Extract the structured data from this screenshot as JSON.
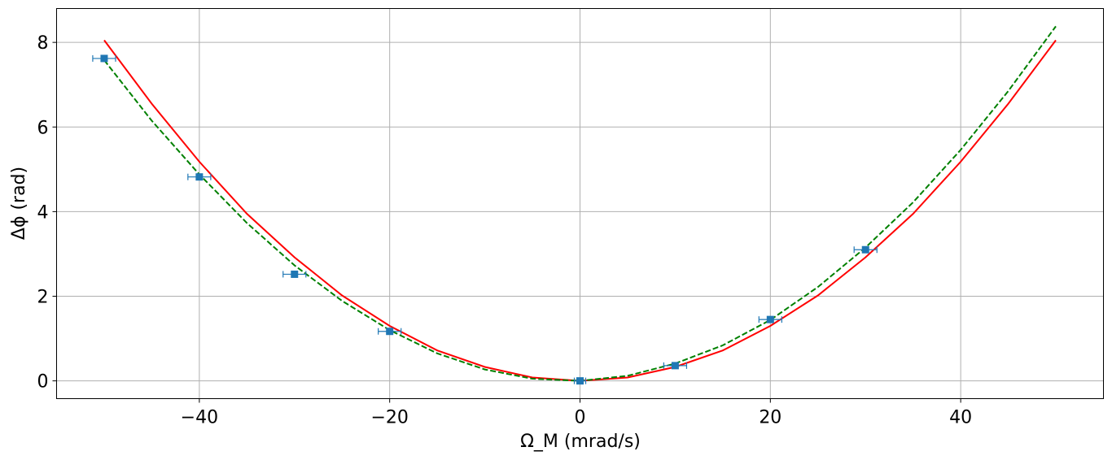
{
  "chart_data": {
    "type": "scatter",
    "xlabel": "Ω_M (mrad/s)",
    "ylabel": "Δϕ (rad)",
    "xlim": [
      -55,
      55
    ],
    "ylim": [
      -0.42,
      8.8
    ],
    "xticks": [
      -40,
      -20,
      0,
      20,
      40
    ],
    "yticks": [
      0,
      2,
      4,
      6,
      8
    ],
    "grid": true,
    "series": [
      {
        "kind": "line",
        "style": "solid",
        "color": "#ff0000",
        "x": [
          -50,
          -45,
          -40,
          -35,
          -30,
          -25,
          -20,
          -15,
          -10,
          -5,
          0,
          5,
          10,
          15,
          20,
          25,
          30,
          35,
          40,
          45,
          50
        ],
        "y": [
          8.05,
          6.55,
          5.18,
          3.95,
          2.92,
          2.02,
          1.3,
          0.72,
          0.33,
          0.08,
          0.0,
          0.08,
          0.33,
          0.72,
          1.3,
          2.02,
          2.92,
          3.95,
          5.18,
          6.55,
          8.05
        ]
      },
      {
        "kind": "line",
        "style": "dashed",
        "color": "#008000",
        "x": [
          -50,
          -45,
          -40,
          -35,
          -30,
          -25,
          -20,
          -15,
          -10,
          -5,
          0,
          5,
          10,
          15,
          20,
          25,
          30,
          35,
          40,
          45,
          50
        ],
        "y": [
          7.58,
          6.15,
          4.88,
          3.73,
          2.73,
          1.89,
          1.2,
          0.65,
          0.27,
          0.05,
          0.0,
          0.12,
          0.41,
          0.84,
          1.44,
          2.22,
          3.15,
          4.22,
          5.46,
          6.85,
          8.38
        ]
      },
      {
        "kind": "points",
        "marker": "square",
        "errorbars": true,
        "color": "#1f77b4",
        "x": [
          -50,
          -40,
          -30,
          -20,
          0,
          10,
          20,
          30
        ],
        "y": [
          7.62,
          4.82,
          2.52,
          1.17,
          0.0,
          0.36,
          1.45,
          3.1
        ],
        "xerr": [
          1.2,
          1.2,
          1.2,
          1.2,
          0.6,
          1.2,
          1.2,
          1.2
        ]
      }
    ]
  }
}
